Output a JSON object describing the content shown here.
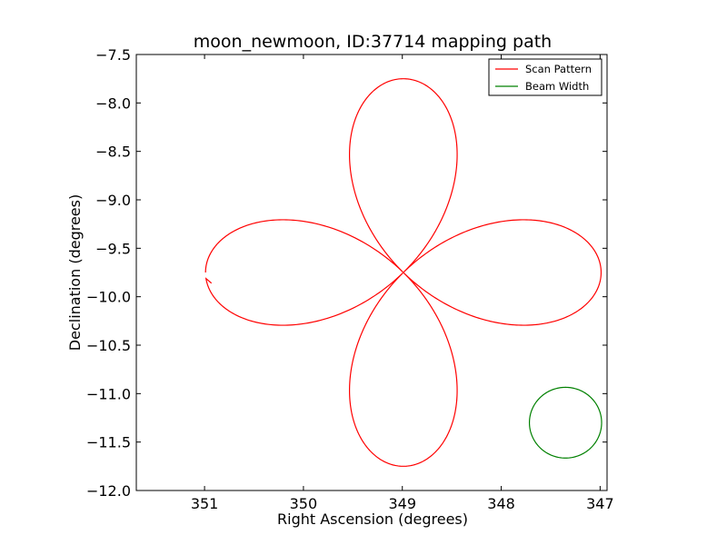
{
  "chart_data": {
    "type": "line",
    "title": "moon_newmoon, ID:37714 mapping path",
    "xlabel": "Right Ascension (degrees)",
    "ylabel": "Declination (degrees)",
    "xlim": [
      351.69,
      346.93
    ],
    "ylim": [
      -12.0,
      -7.5
    ],
    "x_inverted": true,
    "xticks": [
      351,
      350,
      349,
      348,
      347
    ],
    "xtick_labels": [
      "351",
      "350",
      "349",
      "348",
      "347"
    ],
    "yticks": [
      -7.5,
      -8.0,
      -8.5,
      -9.0,
      -9.5,
      -10.0,
      -10.5,
      -11.0,
      -11.5,
      -12.0
    ],
    "ytick_labels": [
      "−7.5",
      "−8.0",
      "−8.5",
      "−9.0",
      "−9.5",
      "−10.0",
      "−10.5",
      "−11.0",
      "−11.5",
      "−12.0"
    ],
    "grid": false,
    "legend_position": "top-right",
    "series": [
      {
        "name": "Scan Pattern",
        "color": "#ff0000",
        "curve": "rose",
        "center_ra": 348.99,
        "center_dec": -9.75,
        "amplitude_deg": 2.0,
        "petals": 4,
        "start_ra": 351.0,
        "start_dec": -9.75,
        "gap_end_ra": 350.93,
        "gap_end_dec": -9.86
      },
      {
        "name": "Beam Width",
        "color": "#008000",
        "curve": "circle",
        "center_ra": 347.35,
        "center_dec": -11.3,
        "radius_deg": 0.365
      }
    ]
  }
}
